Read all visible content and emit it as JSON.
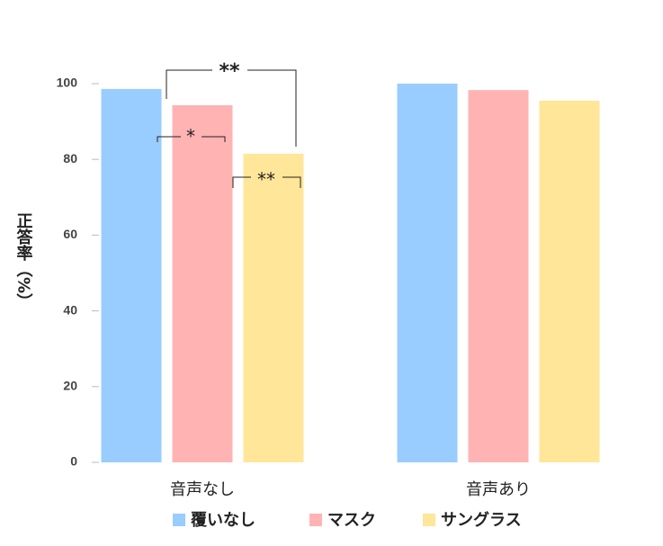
{
  "chart_data": {
    "type": "bar",
    "categories": [
      "音声なし",
      "音声あり"
    ],
    "series": [
      {
        "name": "覆いなし",
        "color": "#99ccff",
        "values": [
          98.6,
          100
        ]
      },
      {
        "name": "マスク",
        "color": "#ffb3b3",
        "values": [
          94.3,
          98.3
        ]
      },
      {
        "name": "サングラス",
        "color": "#ffe699",
        "values": [
          81.5,
          95.5
        ]
      }
    ],
    "ylabel": "正答率（%）",
    "ylim": [
      0,
      100
    ],
    "yticks": [
      0,
      20,
      40,
      60,
      80,
      100
    ],
    "annotations": [
      "**",
      "*",
      "**"
    ],
    "legend": "bottom"
  }
}
